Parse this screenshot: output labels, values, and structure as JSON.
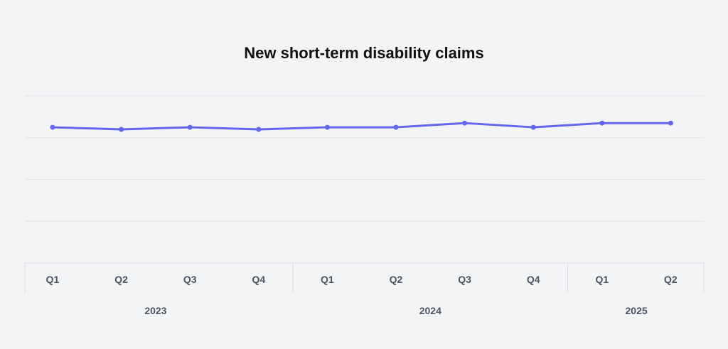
{
  "chart_data": {
    "type": "line",
    "title": "New short-term disability claims",
    "xlabel": "",
    "ylabel": "",
    "categories": [
      "Q1",
      "Q2",
      "Q3",
      "Q4",
      "Q1",
      "Q2",
      "Q3",
      "Q4",
      "Q1",
      "Q2"
    ],
    "groups": [
      {
        "label": "2023",
        "count": 4
      },
      {
        "label": "2024",
        "count": 4
      },
      {
        "label": "2025",
        "count": 2
      }
    ],
    "series": [
      {
        "name": "New short-term disability claims",
        "color": "#6366f1",
        "values": [
          3.25,
          3.2,
          3.25,
          3.2,
          3.25,
          3.25,
          3.35,
          3.25,
          3.35,
          3.35
        ]
      }
    ],
    "ylim": [
      0,
      4
    ],
    "grid": true,
    "y_ticks_shown": false
  }
}
